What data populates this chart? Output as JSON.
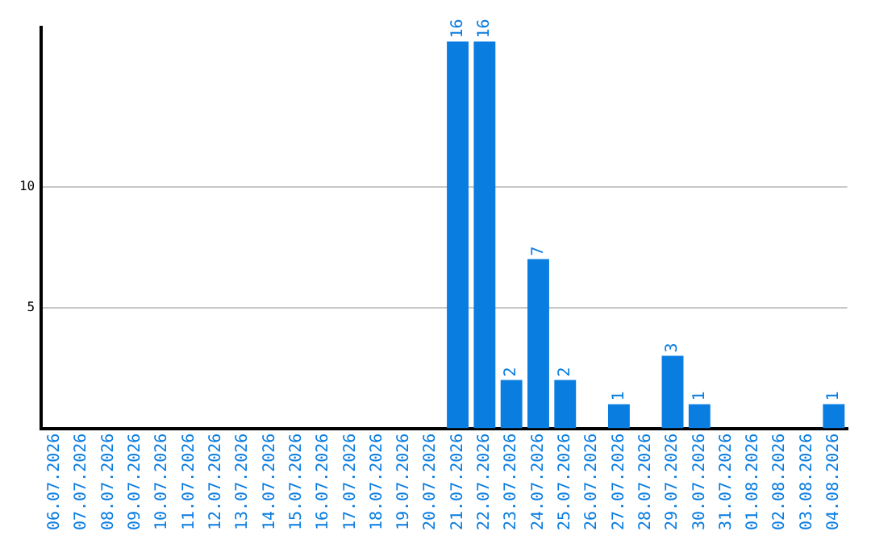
{
  "chart_data": {
    "type": "bar",
    "categories": [
      "06.07.2026",
      "07.07.2026",
      "08.07.2026",
      "09.07.2026",
      "10.07.2026",
      "11.07.2026",
      "12.07.2026",
      "13.07.2026",
      "14.07.2026",
      "15.07.2026",
      "16.07.2026",
      "17.07.2026",
      "18.07.2026",
      "19.07.2026",
      "20.07.2026",
      "21.07.2026",
      "22.07.2026",
      "23.07.2026",
      "24.07.2026",
      "25.07.2026",
      "26.07.2026",
      "27.07.2026",
      "28.07.2026",
      "29.07.2026",
      "30.07.2026",
      "31.07.2026",
      "01.08.2026",
      "02.08.2026",
      "03.08.2026",
      "04.08.2026"
    ],
    "values": [
      0,
      0,
      0,
      0,
      0,
      0,
      0,
      0,
      0,
      0,
      0,
      0,
      0,
      0,
      0,
      16,
      16,
      2,
      7,
      2,
      0,
      1,
      0,
      3,
      1,
      0,
      0,
      0,
      0,
      1
    ],
    "value_labels": [
      null,
      null,
      null,
      null,
      null,
      null,
      null,
      null,
      null,
      null,
      null,
      null,
      null,
      null,
      null,
      "16",
      "16",
      "2",
      "7",
      "2",
      null,
      "1",
      null,
      "3",
      "1",
      null,
      null,
      null,
      null,
      "1"
    ],
    "color": "#0a7de0",
    "ylim": [
      0,
      16.6
    ],
    "yticks": [
      5,
      10
    ],
    "grid": "y",
    "legend": false
  }
}
